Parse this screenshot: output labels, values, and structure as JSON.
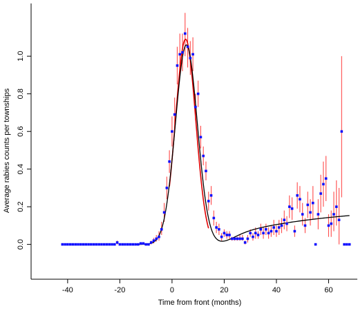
{
  "chart_data": {
    "type": "scatter",
    "xlabel": "Time from front (months)",
    "ylabel": "Average rabies counts per townships",
    "xlim": [
      -54,
      71
    ],
    "ylim": [
      -0.185,
      1.28
    ],
    "xticks": [
      "-40",
      "-20",
      "0",
      "20",
      "40",
      "60"
    ],
    "xtick_values": [
      -40,
      -20,
      0,
      20,
      40,
      60
    ],
    "yticks": [
      "0.0",
      "0.2",
      "0.4",
      "0.6",
      "0.8",
      "1.0"
    ],
    "ytick_values": [
      0.0,
      0.2,
      0.4,
      0.6,
      0.8,
      1.0
    ],
    "grid": false,
    "colors": {
      "points": "#1010ff",
      "error_bars": "#ff4a4a",
      "model_curve": "#000000",
      "early_fit": "#e00000"
    },
    "series": [
      {
        "kind": "points_with_error_bars",
        "points": [
          [
            -42,
            0,
            0,
            0
          ],
          [
            -41,
            0,
            0,
            0
          ],
          [
            -40,
            0,
            0,
            0
          ],
          [
            -39,
            0,
            0,
            0
          ],
          [
            -38,
            0,
            0,
            0
          ],
          [
            -37,
            0,
            0,
            0
          ],
          [
            -36,
            0,
            0,
            0
          ],
          [
            -35,
            0,
            0,
            0
          ],
          [
            -34,
            0,
            0,
            0
          ],
          [
            -33,
            0,
            0,
            0
          ],
          [
            -32,
            0,
            0,
            0
          ],
          [
            -31,
            0,
            0,
            0
          ],
          [
            -30,
            0,
            0,
            0
          ],
          [
            -29,
            0,
            0,
            0
          ],
          [
            -28,
            0,
            0,
            0
          ],
          [
            -27,
            0,
            0,
            0
          ],
          [
            -26,
            0,
            0,
            0
          ],
          [
            -25,
            0,
            0,
            0
          ],
          [
            -24,
            0,
            0,
            0
          ],
          [
            -23,
            0,
            0,
            0
          ],
          [
            -22,
            0,
            0,
            0
          ],
          [
            -21,
            0.01,
            0,
            0.02
          ],
          [
            -20,
            0,
            0,
            0
          ],
          [
            -19,
            0,
            0,
            0
          ],
          [
            -18,
            0,
            0,
            0
          ],
          [
            -17,
            0,
            0,
            0
          ],
          [
            -16,
            0,
            0,
            0
          ],
          [
            -15,
            0,
            0,
            0
          ],
          [
            -14,
            0,
            0,
            0
          ],
          [
            -13,
            0,
            0,
            0
          ],
          [
            -12,
            0.005,
            0,
            0.01
          ],
          [
            -11,
            0.005,
            0,
            0.01
          ],
          [
            -10,
            0,
            0,
            0
          ],
          [
            -9,
            0,
            0,
            0
          ],
          [
            -8,
            0.01,
            0,
            0.02
          ],
          [
            -7,
            0.02,
            0.005,
            0.035
          ],
          [
            -6,
            0.03,
            0.015,
            0.05
          ],
          [
            -5,
            0.04,
            0.02,
            0.07
          ],
          [
            -4,
            0.08,
            0.05,
            0.12
          ],
          [
            -3,
            0.17,
            0.12,
            0.22
          ],
          [
            -2,
            0.3,
            0.24,
            0.36
          ],
          [
            -1,
            0.44,
            0.38,
            0.5
          ],
          [
            0,
            0.6,
            0.52,
            0.68
          ],
          [
            1,
            0.69,
            0.6,
            0.78
          ],
          [
            2,
            0.95,
            0.85,
            1.05
          ],
          [
            3,
            1.01,
            0.9,
            1.12
          ],
          [
            4,
            1.02,
            0.92,
            1.12
          ],
          [
            5,
            1.12,
            1.0,
            1.23
          ],
          [
            6,
            1.05,
            0.94,
            1.15
          ],
          [
            7,
            0.99,
            0.9,
            1.08
          ],
          [
            8,
            1.01,
            0.92,
            1.1
          ],
          [
            9,
            0.73,
            0.66,
            0.8
          ],
          [
            10,
            0.8,
            0.73,
            0.87
          ],
          [
            11,
            0.57,
            0.51,
            0.63
          ],
          [
            12,
            0.47,
            0.42,
            0.52
          ],
          [
            13,
            0.39,
            0.34,
            0.44
          ],
          [
            14,
            0.23,
            0.18,
            0.28
          ],
          [
            15,
            0.26,
            0.21,
            0.31
          ],
          [
            16,
            0.14,
            0.1,
            0.18
          ],
          [
            17,
            0.09,
            0.06,
            0.12
          ],
          [
            18,
            0.08,
            0.05,
            0.11
          ],
          [
            19,
            0.04,
            0.02,
            0.06
          ],
          [
            20,
            0.06,
            0.04,
            0.08
          ],
          [
            21,
            0.05,
            0.03,
            0.07
          ],
          [
            22,
            0.05,
            0.03,
            0.07
          ],
          [
            23,
            0.03,
            0.02,
            0.04
          ],
          [
            24,
            0.03,
            0.02,
            0.04
          ],
          [
            25,
            0.03,
            0.02,
            0.04
          ],
          [
            26,
            0.03,
            0.02,
            0.05
          ],
          [
            27,
            0.03,
            0.02,
            0.05
          ],
          [
            28,
            0.01,
            0.0,
            0.02
          ],
          [
            29,
            0.03,
            0.01,
            0.05
          ],
          [
            30,
            0.06,
            0.04,
            0.08
          ],
          [
            31,
            0.04,
            0.02,
            0.06
          ],
          [
            32,
            0.06,
            0.03,
            0.09
          ],
          [
            33,
            0.05,
            0.03,
            0.07
          ],
          [
            34,
            0.08,
            0.05,
            0.11
          ],
          [
            35,
            0.06,
            0.03,
            0.09
          ],
          [
            36,
            0.08,
            0.05,
            0.11
          ],
          [
            37,
            0.06,
            0.03,
            0.09
          ],
          [
            38,
            0.07,
            0.04,
            0.1
          ],
          [
            39,
            0.09,
            0.05,
            0.13
          ],
          [
            40,
            0.07,
            0.04,
            0.1
          ],
          [
            41,
            0.09,
            0.05,
            0.13
          ],
          [
            42,
            0.1,
            0.06,
            0.14
          ],
          [
            43,
            0.13,
            0.08,
            0.18
          ],
          [
            44,
            0.11,
            0.07,
            0.15
          ],
          [
            45,
            0.2,
            0.14,
            0.26
          ],
          [
            46,
            0.19,
            0.13,
            0.25
          ],
          [
            47,
            0.07,
            0.04,
            0.1
          ],
          [
            48,
            0.26,
            0.19,
            0.33
          ],
          [
            49,
            0.24,
            0.17,
            0.31
          ],
          [
            50,
            0.16,
            0.1,
            0.22
          ],
          [
            51,
            0.1,
            0.06,
            0.14
          ],
          [
            52,
            0.21,
            0.14,
            0.28
          ],
          [
            53,
            0.17,
            0.1,
            0.24
          ],
          [
            54,
            0.22,
            0.13,
            0.31
          ],
          [
            55,
            0.0,
            0.0,
            0.0
          ],
          [
            56,
            0.16,
            0.08,
            0.24
          ],
          [
            57,
            0.27,
            0.17,
            0.37
          ],
          [
            58,
            0.32,
            0.2,
            0.44
          ],
          [
            59,
            0.35,
            0.23,
            0.47
          ],
          [
            60,
            0.1,
            0.04,
            0.16
          ],
          [
            61,
            0.11,
            0.04,
            0.18
          ],
          [
            62,
            0.16,
            0.07,
            0.28
          ],
          [
            63,
            0.2,
            0.1,
            0.34
          ],
          [
            64,
            0.13,
            0.0,
            0.3
          ],
          [
            65,
            0.6,
            0.25,
            1.0
          ],
          [
            66,
            0.0,
            0.0,
            0.0
          ],
          [
            67,
            0.0,
            0.0,
            0.0
          ],
          [
            68,
            0.0,
            0.0,
            0.0
          ]
        ]
      }
    ]
  }
}
